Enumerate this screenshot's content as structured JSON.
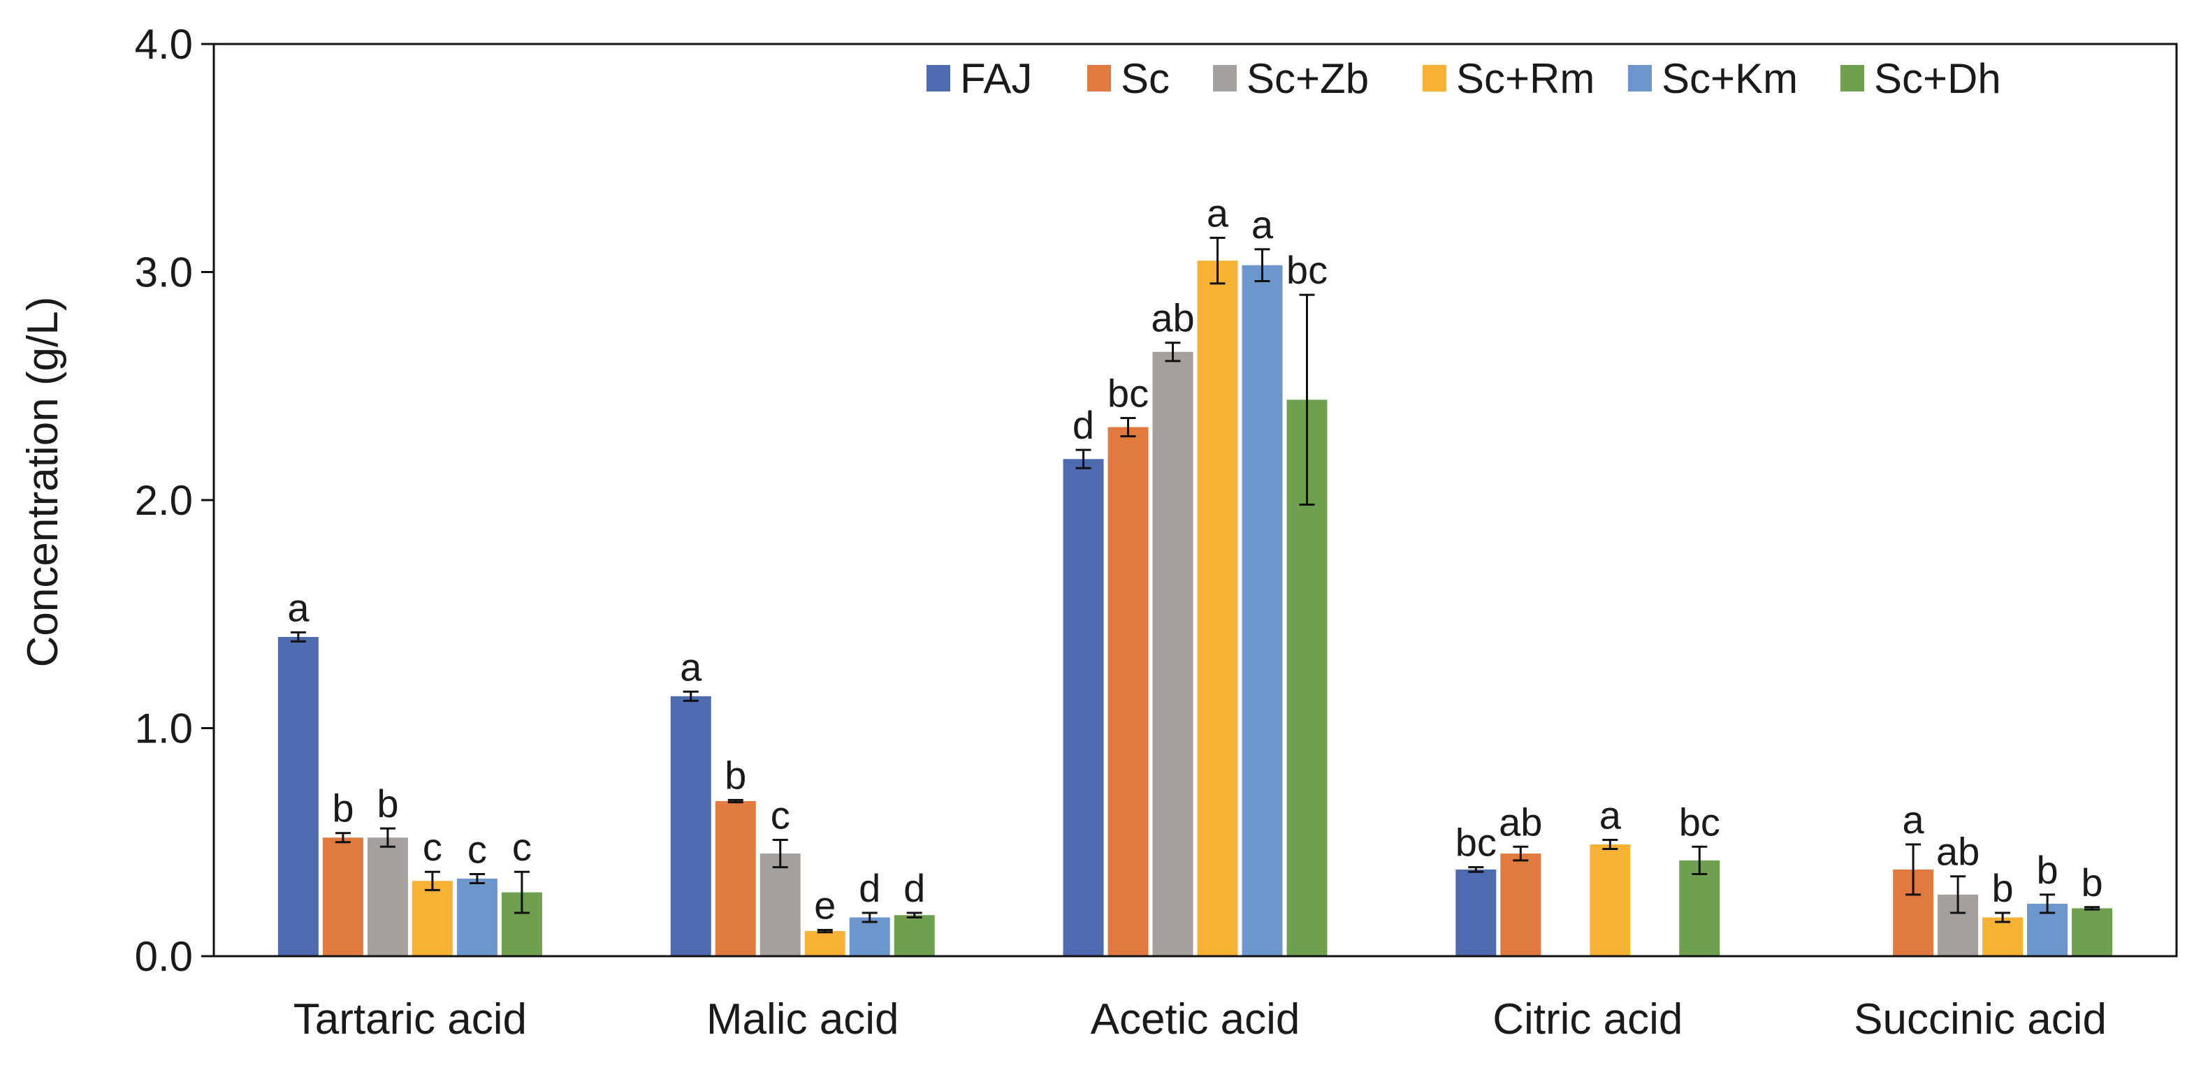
{
  "chart_data": {
    "type": "bar",
    "title": "",
    "xlabel": "",
    "ylabel": "Concentration (g/L)",
    "ylim": [
      0,
      4.0
    ],
    "yticks": [
      "0.0",
      "1.0",
      "2.0",
      "3.0",
      "4.0"
    ],
    "ytick_values": [
      0,
      1,
      2,
      3,
      4
    ],
    "grid": false,
    "legend_position": "top-right",
    "categories": [
      "Tartaric acid",
      "Malic acid",
      "Acetic acid",
      "Citric acid",
      "Succinic acid"
    ],
    "series": [
      {
        "name": "FAJ",
        "color": "#4F6BB0",
        "values": [
          1.4,
          1.14,
          2.18,
          0.38,
          null
        ],
        "errors": [
          0.02,
          0.02,
          0.04,
          0.01,
          null
        ],
        "letters": [
          "a",
          "a",
          "d",
          "bc",
          null
        ]
      },
      {
        "name": "Sc",
        "color": "#E07A3E",
        "values": [
          0.52,
          0.68,
          2.32,
          0.45,
          0.38
        ],
        "errors": [
          0.02,
          0.005,
          0.04,
          0.03,
          0.11
        ],
        "letters": [
          "b",
          "b",
          "bc",
          "ab",
          "a"
        ]
      },
      {
        "name": "Sc+Zb",
        "color": "#A3A09E",
        "values": [
          0.52,
          0.45,
          2.65,
          null,
          0.27
        ],
        "errors": [
          0.04,
          0.06,
          0.04,
          null,
          0.08
        ],
        "letters": [
          "b",
          "c",
          "ab",
          null,
          "ab"
        ]
      },
      {
        "name": "Sc+Rm",
        "color": "#F7B236",
        "values": [
          0.33,
          0.11,
          3.05,
          0.49,
          0.17
        ],
        "errors": [
          0.04,
          0.005,
          0.1,
          0.02,
          0.02
        ],
        "letters": [
          "c",
          "e",
          "a",
          "a",
          "b"
        ]
      },
      {
        "name": "Sc+Km",
        "color": "#6C96CC",
        "values": [
          0.34,
          0.17,
          3.03,
          null,
          0.23
        ],
        "errors": [
          0.02,
          0.02,
          0.07,
          null,
          0.04
        ],
        "letters": [
          "c",
          "d",
          "a",
          null,
          "b"
        ]
      },
      {
        "name": "Sc+Dh",
        "color": "#6FA050",
        "values": [
          0.28,
          0.18,
          2.44,
          0.42,
          0.21
        ],
        "errors": [
          0.09,
          0.01,
          0.46,
          0.06,
          0.005
        ],
        "letters": [
          "c",
          "d",
          "bc",
          "bc",
          "b"
        ]
      }
    ]
  }
}
